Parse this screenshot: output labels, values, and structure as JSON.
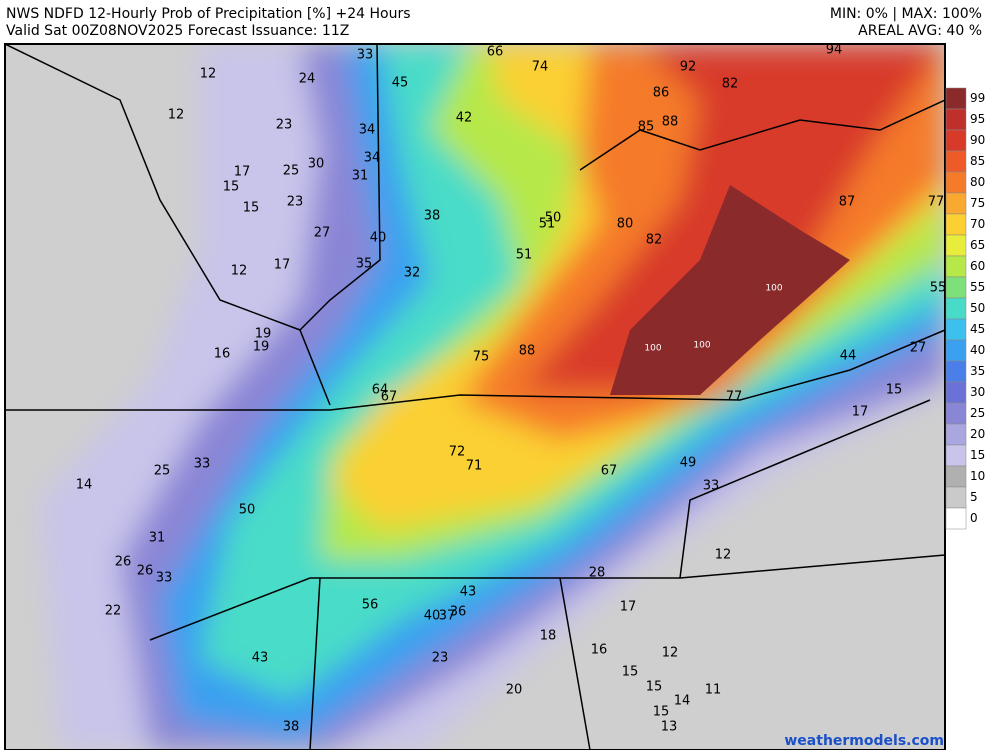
{
  "header": {
    "title": "NWS NDFD 12-Hourly Prob of Precipitation [%] +24 Hours",
    "valid": "Valid Sat 00Z08NOV2025  Forecast Issuance: 11Z",
    "minmax": "MIN: 0% | MAX: 100%",
    "areal": "AREAL AVG: 40 %"
  },
  "colorbar": {
    "labels": [
      99,
      95,
      90,
      85,
      80,
      75,
      70,
      65,
      60,
      55,
      50,
      45,
      40,
      35,
      30,
      25,
      20,
      15,
      10,
      5,
      0
    ],
    "colors": [
      "#8b2a2a",
      "#c0302a",
      "#d83a2a",
      "#ee5a28",
      "#f57a2a",
      "#f9a830",
      "#fbd030",
      "#e8ec3a",
      "#b6e84a",
      "#7ee07a",
      "#48dcc8",
      "#3cc0ee",
      "#3aa0f0",
      "#4a7ee8",
      "#6a72d8",
      "#8a86d6",
      "#aaa6e0",
      "#c8c4ea",
      "#b0b0b0",
      "#cacaca",
      "#ffffff"
    ]
  },
  "points": [
    33,
    66,
    74,
    92,
    94,
    12,
    24,
    45,
    82,
    86,
    12,
    23,
    34,
    42,
    85,
    88,
    30,
    34,
    17,
    25,
    31,
    15,
    23,
    87,
    77,
    15,
    38,
    50,
    51,
    80,
    27,
    40,
    82,
    35,
    51,
    12,
    17,
    32,
    100,
    55,
    19,
    16,
    19,
    100,
    100,
    75,
    88,
    44,
    27,
    64,
    67,
    15,
    77,
    17,
    72,
    71,
    49,
    67,
    25,
    33,
    14,
    33,
    50,
    31,
    12,
    26,
    26,
    33,
    28,
    43,
    56,
    17,
    22,
    40,
    37,
    36,
    18,
    16,
    12,
    43,
    23,
    15,
    15,
    20,
    14,
    11,
    15,
    13,
    38
  ],
  "footer": "weathermodels.com"
}
